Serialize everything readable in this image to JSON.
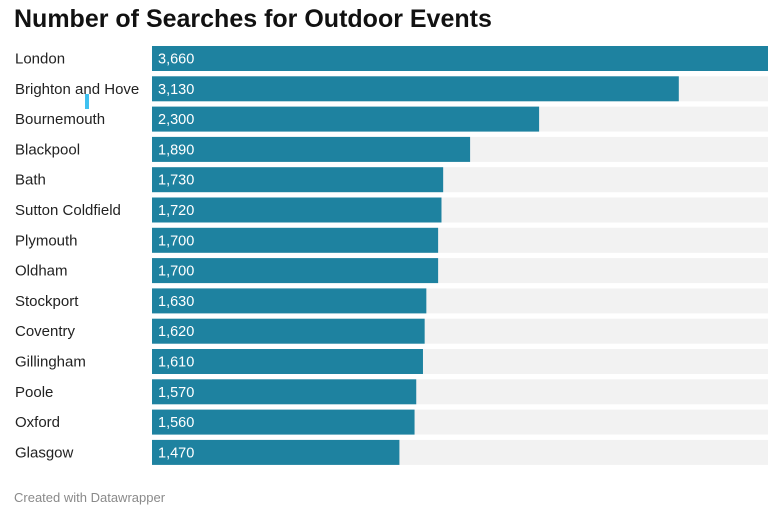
{
  "header": {
    "title": "Number of Searches for Outdoor Events"
  },
  "footer": {
    "credit": "Created with Datawrapper"
  },
  "colors": {
    "bar": "#1e82a0",
    "track": "#f2f2f2",
    "value_text": "#ffffff",
    "label_text": "#222222",
    "cursor": "#3fc1f0"
  },
  "chart_data": {
    "type": "bar",
    "orientation": "horizontal",
    "title": "Number of Searches for Outdoor Events",
    "xlabel": "",
    "ylabel": "",
    "xlim": [
      0,
      3660
    ],
    "grid": false,
    "legend": "none",
    "categories": [
      "London",
      "Brighton and Hove",
      "Bournemouth",
      "Blackpool",
      "Bath",
      "Sutton Coldfield",
      "Plymouth",
      "Oldham",
      "Stockport",
      "Coventry",
      "Gillingham",
      "Poole",
      "Oxford",
      "Glasgow"
    ],
    "values": [
      3660,
      3130,
      2300,
      1890,
      1730,
      1720,
      1700,
      1700,
      1630,
      1620,
      1610,
      1570,
      1560,
      1470
    ],
    "value_labels": [
      "3,660",
      "3,130",
      "2,300",
      "1,890",
      "1,730",
      "1,720",
      "1,700",
      "1,700",
      "1,630",
      "1,620",
      "1,610",
      "1,570",
      "1,560",
      "1,470"
    ]
  }
}
